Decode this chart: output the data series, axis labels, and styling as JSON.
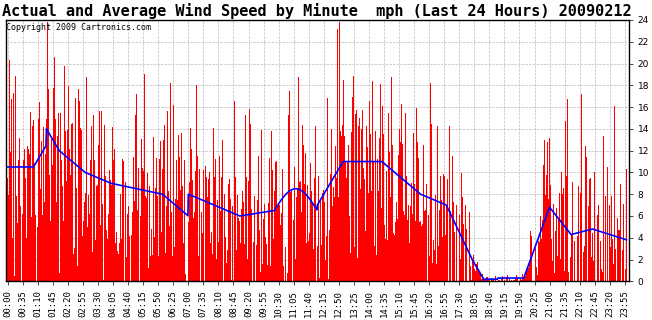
{
  "title": "Actual and Average Wind Speed by Minute  mph (Last 24 Hours) 20090212",
  "copyright": "Copyright 2009 Cartronics.com",
  "ylim": [
    0.0,
    24.0
  ],
  "yticks": [
    0.0,
    2.0,
    4.0,
    6.0,
    8.0,
    10.0,
    12.0,
    14.0,
    16.0,
    18.0,
    20.0,
    22.0,
    24.0
  ],
  "bar_color": "#FF0000",
  "line_color": "#0000FF",
  "background_color": "#FFFFFF",
  "grid_color": "#AAAAAA",
  "title_fontsize": 11,
  "tick_fontsize": 6.5,
  "copyright_fontsize": 6
}
